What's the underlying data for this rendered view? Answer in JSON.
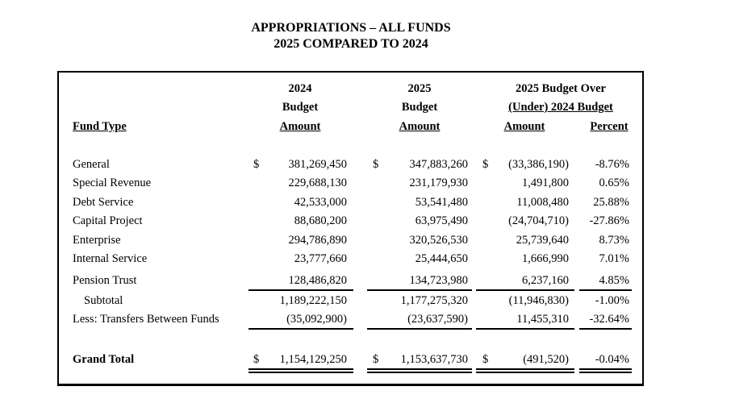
{
  "title": {
    "line1": "APPROPRIATIONS – ALL FUNDS",
    "line2": "2025 COMPARED TO 2024"
  },
  "headers": {
    "fund_type": "Fund Type",
    "col2024": [
      "2024",
      "Budget",
      "Amount"
    ],
    "col2025": [
      "2025",
      "Budget",
      "Amount"
    ],
    "over_under": [
      "2025 Budget Over",
      "(Under) 2024 Budget"
    ],
    "amount": "Amount",
    "percent": "Percent"
  },
  "currency_symbol": "$",
  "rows": [
    {
      "fund": "General",
      "b2024": "381,269,450",
      "b2025": "347,883,260",
      "diff": "(33,386,190)",
      "pct": "-8.76%"
    },
    {
      "fund": "Special Revenue",
      "b2024": "229,688,130",
      "b2025": "231,179,930",
      "diff": "1,491,800",
      "pct": "0.65%"
    },
    {
      "fund": "Debt Service",
      "b2024": "42,533,000",
      "b2025": "53,541,480",
      "diff": "11,008,480",
      "pct": "25.88%"
    },
    {
      "fund": "Capital Project",
      "b2024": "88,680,200",
      "b2025": "63,975,490",
      "diff": "(24,704,710)",
      "pct": "-27.86%"
    },
    {
      "fund": "Enterprise",
      "b2024": "294,786,890",
      "b2025": "320,526,530",
      "diff": "25,739,640",
      "pct": "8.73%"
    },
    {
      "fund": "Internal Service",
      "b2024": "23,777,660",
      "b2025": "25,444,650",
      "diff": "1,666,990",
      "pct": "7.01%"
    },
    {
      "fund": "Pension Trust",
      "b2024": "128,486,820",
      "b2025": "134,723,980",
      "diff": "6,237,160",
      "pct": "4.85%"
    }
  ],
  "subtotal": {
    "fund": "Subtotal",
    "b2024": "1,189,222,150",
    "b2025": "1,177,275,320",
    "diff": "(11,946,830)",
    "pct": "-1.00%"
  },
  "transfers": {
    "fund": "Less: Transfers Between Funds",
    "b2024": "(35,092,900)",
    "b2025": "(23,637,590)",
    "diff": "11,455,310",
    "pct": "-32.64%"
  },
  "grand_total": {
    "fund": "Grand Total",
    "b2024": "1,154,129,250",
    "b2025": "1,153,637,730",
    "diff": "(491,520)",
    "pct": "-0.04%"
  }
}
